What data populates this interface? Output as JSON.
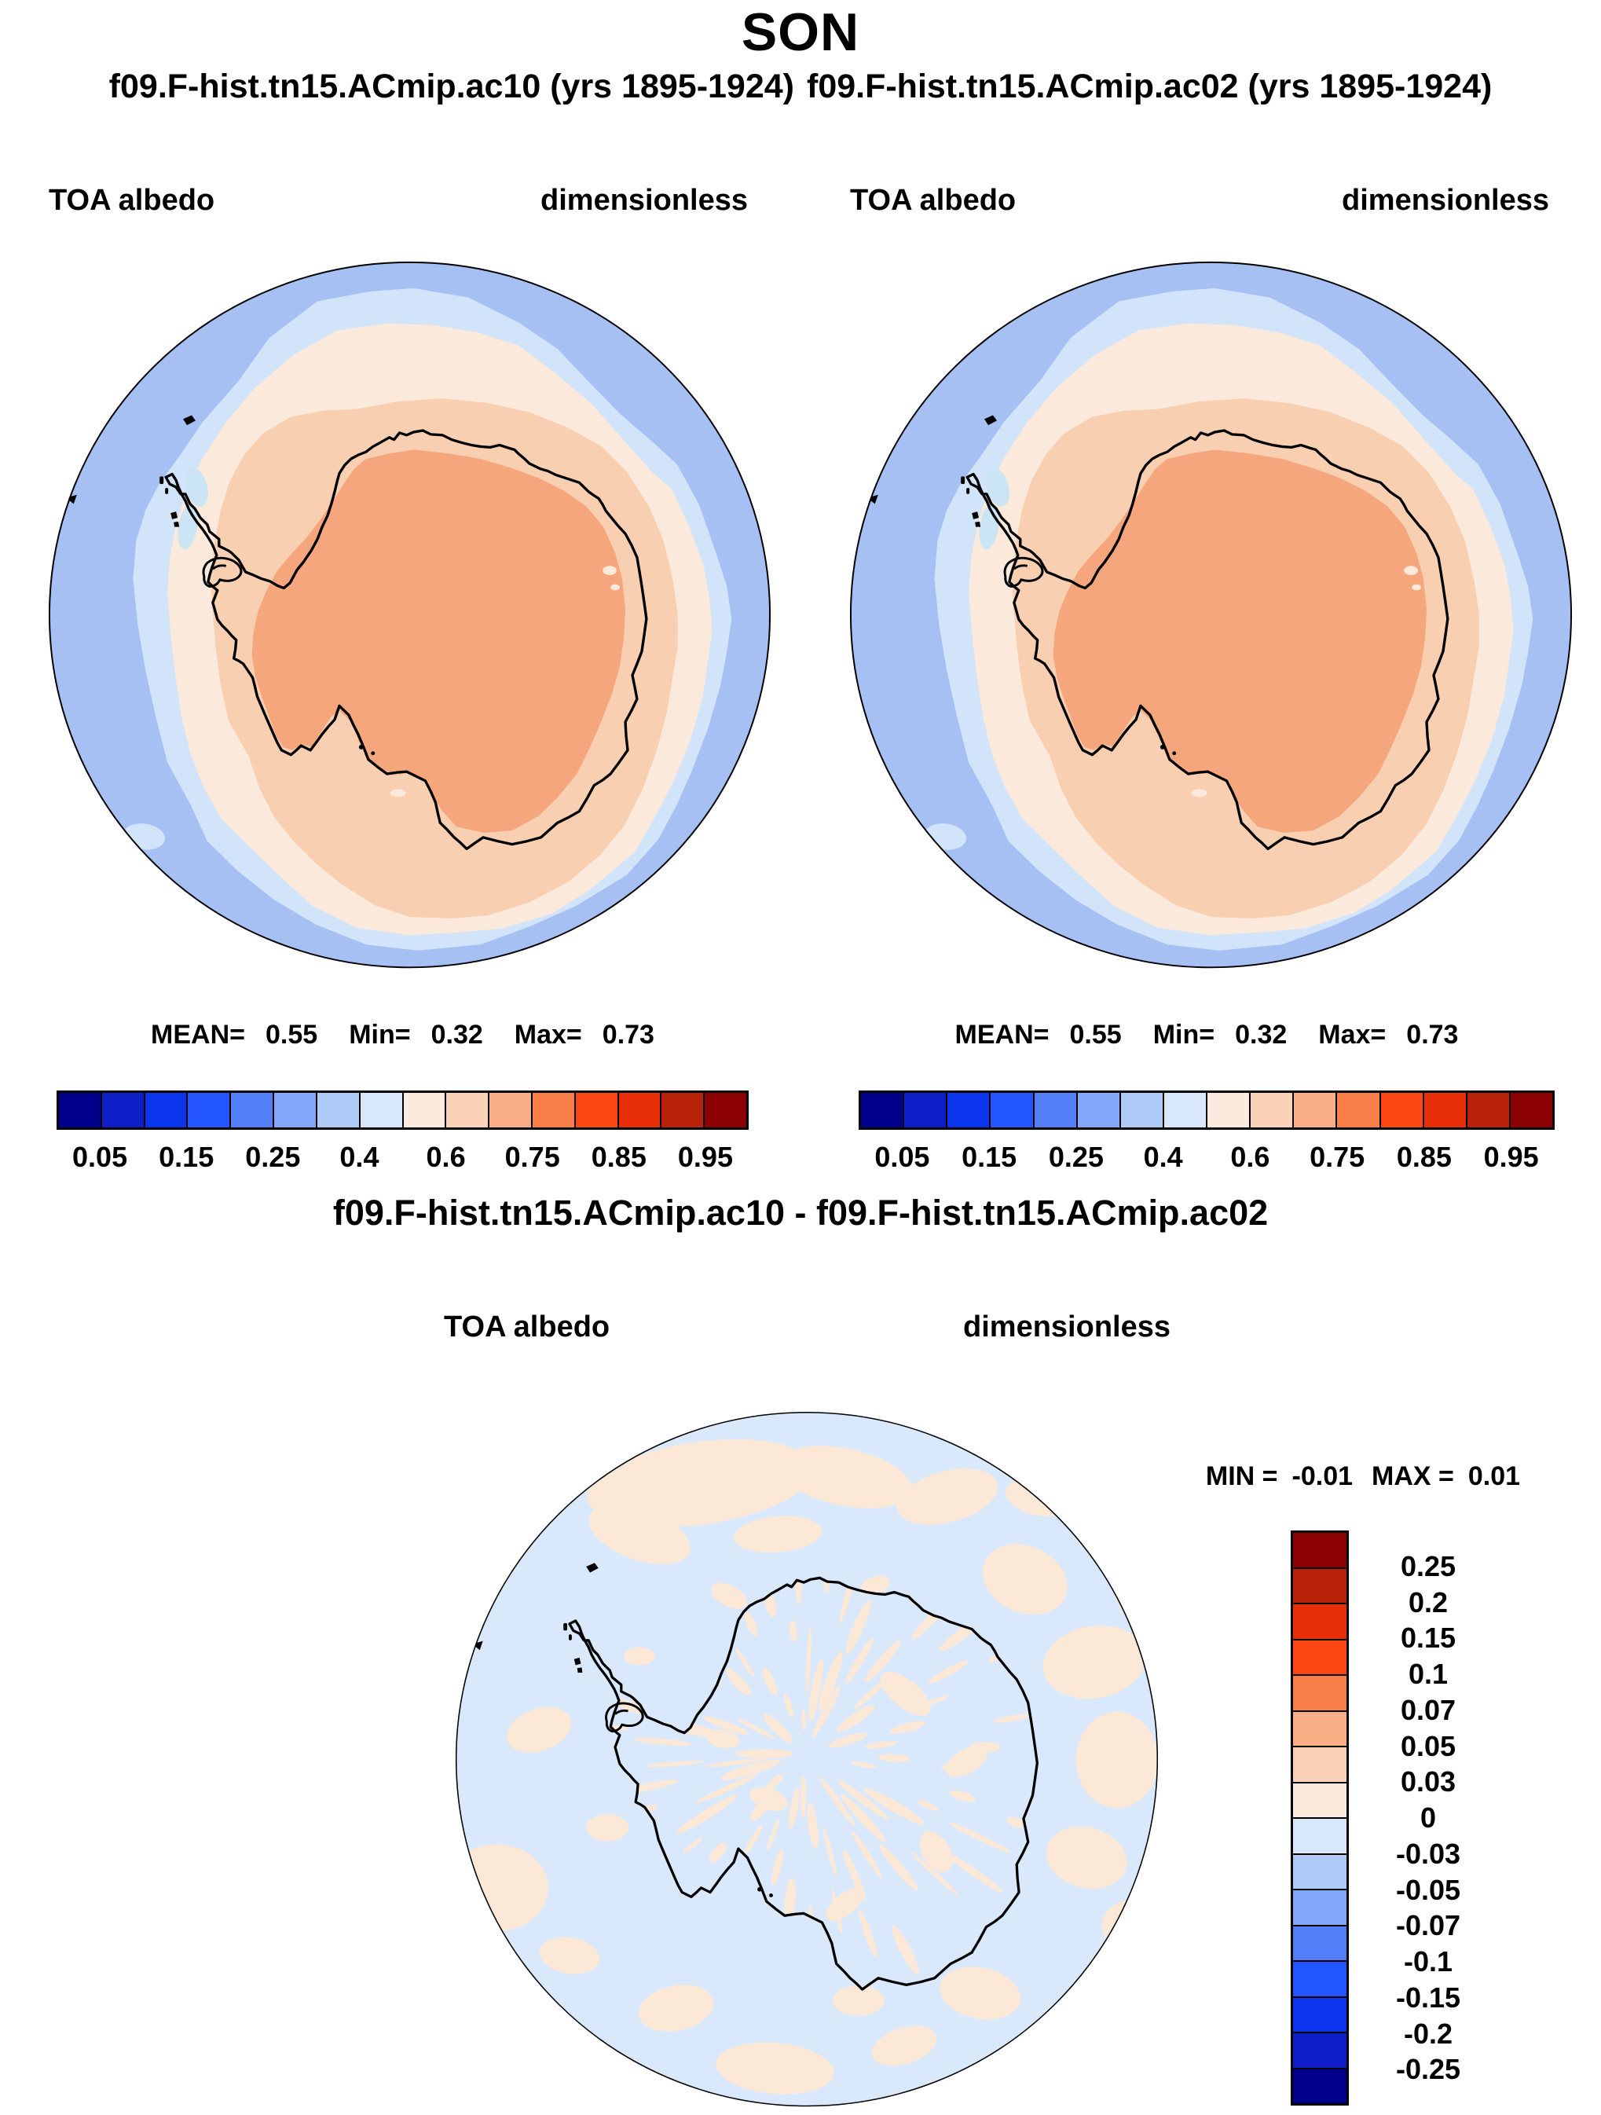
{
  "title": "SON",
  "subtitle_left": "f09.F-hist.tn15.ACmip.ac10 (yrs 1895-1924)",
  "subtitle_right": "f09.F-hist.tn15.ACmip.ac02 (yrs 1895-1924)",
  "panels": [
    {
      "field_label": "TOA albedo",
      "units_label": "dimensionless",
      "stats": {
        "mean_label": "MEAN=",
        "mean": "0.55",
        "min_label": "Min=",
        "min": "0.32",
        "max_label": "Max=",
        "max": "0.73"
      }
    },
    {
      "field_label": "TOA albedo",
      "units_label": "dimensionless",
      "stats": {
        "mean_label": "MEAN=",
        "mean": "0.55",
        "min_label": "Min=",
        "min": "0.32",
        "max_label": "Max=",
        "max": "0.73"
      }
    }
  ],
  "diff": {
    "title": "f09.F-hist.tn15.ACmip.ac10 - f09.F-hist.tn15.ACmip.ac02",
    "field_label": "TOA albedo",
    "units_label": "dimensionless",
    "min_label": "MIN =",
    "min": "-0.01",
    "max_label": "MAX =",
    "max": "0.01"
  },
  "palette": {
    "levels16": [
      "#00008B",
      "#0F1FC8",
      "#0B35EC",
      "#2255FC",
      "#527EF8",
      "#82A7F8",
      "#AECBF8",
      "#D8E8FA",
      "#FCEADC",
      "#FBD2B8",
      "#F9AE85",
      "#FA7E48",
      "#FB4712",
      "#E82E06",
      "#B82208",
      "#8B0000"
    ],
    "map_ocean": "#A7C0F4",
    "map_ring_blue": "#D2E4FA",
    "map_cream": "#FBE9DB",
    "map_light_peach": "#F9CFB2",
    "map_orange": "#F5A67C",
    "map_cyan_patch": "#CCE5F4",
    "diff_base": "#D9E9FB",
    "diff_peach": "#FBE8D7",
    "coast_black": "#000000"
  },
  "colorbar_h": {
    "colors": [
      "#00008B",
      "#0F1FC8",
      "#0B35EC",
      "#2255FC",
      "#527EF8",
      "#82A7F8",
      "#AECBF8",
      "#D8E8FA",
      "#FCEADC",
      "#FBD2B8",
      "#F9AE85",
      "#FA7E48",
      "#FB4712",
      "#E82E06",
      "#B82208",
      "#8B0000"
    ],
    "ticks": [
      {
        "p": 1,
        "t": "0.05"
      },
      {
        "p": 3,
        "t": "0.15"
      },
      {
        "p": 5,
        "t": "0.25"
      },
      {
        "p": 7,
        "t": "0.4"
      },
      {
        "p": 9,
        "t": "0.6"
      },
      {
        "p": 11,
        "t": "0.75"
      },
      {
        "p": 13,
        "t": "0.85"
      },
      {
        "p": 15,
        "t": "0.95"
      }
    ]
  },
  "colorbar_v": {
    "colors": [
      "#8B0000",
      "#B82208",
      "#E82E06",
      "#FB4712",
      "#FA7E48",
      "#F9AE85",
      "#FBD2B8",
      "#FCEADC",
      "#D8E8FA",
      "#AECBF8",
      "#82A7F8",
      "#527EF8",
      "#2255FC",
      "#0B35EC",
      "#0F1FC8",
      "#00008B"
    ],
    "ticks": [
      {
        "p": 1,
        "t": "0.25"
      },
      {
        "p": 2,
        "t": "0.2"
      },
      {
        "p": 3,
        "t": "0.15"
      },
      {
        "p": 4,
        "t": "0.1"
      },
      {
        "p": 5,
        "t": "0.07"
      },
      {
        "p": 6,
        "t": "0.05"
      },
      {
        "p": 7,
        "t": "0.03"
      },
      {
        "p": 8,
        "t": "0"
      },
      {
        "p": 9,
        "t": "-0.03"
      },
      {
        "p": 10,
        "t": "-0.05"
      },
      {
        "p": 11,
        "t": "-0.07"
      },
      {
        "p": 12,
        "t": "-0.1"
      },
      {
        "p": 13,
        "t": "-0.15"
      },
      {
        "p": 14,
        "t": "-0.2"
      },
      {
        "p": 15,
        "t": "-0.25"
      }
    ]
  },
  "chart_data": [
    {
      "type": "heatmap",
      "subtype": "south-polar-stereographic contour map",
      "title": "f09.F-hist.tn15.ACmip.ac10 (yrs 1895-1924)",
      "season": "SON",
      "variable": "TOA albedo",
      "units": "dimensionless",
      "mean": 0.55,
      "min": 0.32,
      "max": 0.73,
      "contour_levels": [
        0.05,
        0.1,
        0.15,
        0.2,
        0.25,
        0.3,
        0.4,
        0.5,
        0.6,
        0.7,
        0.75,
        0.8,
        0.85,
        0.9,
        0.95
      ],
      "labeled_levels": [
        0.05,
        0.15,
        0.25,
        0.4,
        0.6,
        0.75,
        0.85,
        0.95
      ],
      "legend_position": "bottom",
      "description": "Antarctic continent interior ~0.7-0.75 albedo (orange), sea-ice ring ~0.5-0.7 (peach/cream), open ocean ~0.3-0.4 (blue)"
    },
    {
      "type": "heatmap",
      "subtype": "south-polar-stereographic contour map",
      "title": "f09.F-hist.tn15.ACmip.ac02 (yrs 1895-1924)",
      "season": "SON",
      "variable": "TOA albedo",
      "units": "dimensionless",
      "mean": 0.55,
      "min": 0.32,
      "max": 0.73,
      "contour_levels": [
        0.05,
        0.1,
        0.15,
        0.2,
        0.25,
        0.3,
        0.4,
        0.5,
        0.6,
        0.7,
        0.75,
        0.8,
        0.85,
        0.9,
        0.95
      ],
      "labeled_levels": [
        0.05,
        0.15,
        0.25,
        0.4,
        0.6,
        0.75,
        0.85,
        0.95
      ],
      "legend_position": "bottom",
      "description": "Nearly identical to ac10 panel"
    },
    {
      "type": "heatmap",
      "subtype": "south-polar-stereographic difference map",
      "title": "f09.F-hist.tn15.ACmip.ac10 - f09.F-hist.tn15.ACmip.ac02",
      "variable": "TOA albedo",
      "units": "dimensionless",
      "min": -0.01,
      "max": 0.01,
      "contour_levels": [
        -0.25,
        -0.2,
        -0.15,
        -0.1,
        -0.07,
        -0.05,
        -0.03,
        0,
        0.03,
        0.05,
        0.07,
        0.1,
        0.15,
        0.2,
        0.25
      ],
      "legend_position": "right",
      "description": "Differences within +/-0.01: pale blue (0 to -0.03) background with scattered pale peach (0 to +0.03) patches"
    }
  ]
}
